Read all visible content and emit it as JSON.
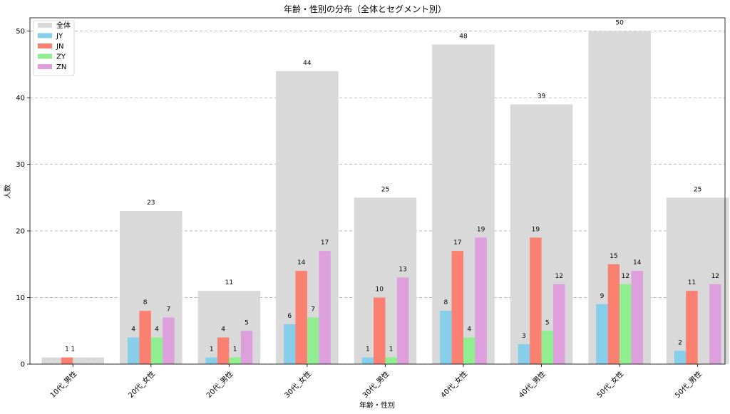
{
  "chart_data": {
    "type": "bar",
    "title": "年齢・性別の分布（全体とセグメント別）",
    "xlabel": "年齢・性別",
    "ylabel": "人数",
    "ylim": [
      0,
      52
    ],
    "yticks": [
      0,
      10,
      20,
      30,
      40,
      50
    ],
    "grid": true,
    "legend_position": "top-left",
    "categories": [
      "10代_男性",
      "20代_女性",
      "20代_男性",
      "30代_女性",
      "30代_男性",
      "40代_女性",
      "40代_男性",
      "50代_女性",
      "50代_男性"
    ],
    "overall": {
      "name": "全体",
      "color": "#d9d9d9",
      "values": [
        1,
        23,
        11,
        44,
        25,
        48,
        39,
        50,
        25
      ]
    },
    "series": [
      {
        "name": "JY",
        "color": "#87ceeb",
        "values": [
          0,
          4,
          1,
          6,
          1,
          8,
          3,
          9,
          2
        ]
      },
      {
        "name": "JN",
        "color": "#fa8072",
        "values": [
          1,
          8,
          4,
          14,
          10,
          17,
          19,
          15,
          11
        ]
      },
      {
        "name": "ZY",
        "color": "#90ee90",
        "values": [
          0,
          4,
          1,
          7,
          1,
          4,
          5,
          12,
          0
        ]
      },
      {
        "name": "ZN",
        "color": "#dda0dd",
        "values": [
          0,
          7,
          5,
          17,
          13,
          19,
          12,
          14,
          12
        ]
      }
    ]
  }
}
